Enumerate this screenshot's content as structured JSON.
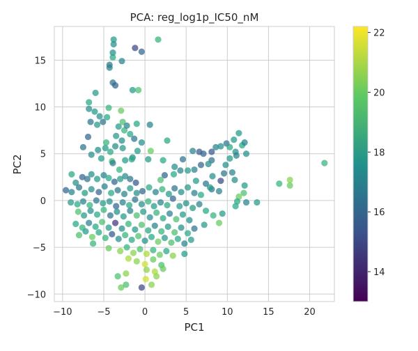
{
  "chart_data": {
    "type": "scatter",
    "title": "PCA: reg_log1p_IC50_nM",
    "xlabel": "PC1",
    "ylabel": "PC2",
    "xlim": [
      -11,
      23
    ],
    "ylim": [
      -10.8,
      18.6
    ],
    "grid": true,
    "x_ticks": [
      {
        "value": -10,
        "label": "−10"
      },
      {
        "value": -5,
        "label": "−5"
      },
      {
        "value": 0,
        "label": "0"
      },
      {
        "value": 5,
        "label": "5"
      },
      {
        "value": 10,
        "label": "10"
      },
      {
        "value": 15,
        "label": "15"
      },
      {
        "value": 20,
        "label": "20"
      }
    ],
    "y_ticks": [
      {
        "value": -10,
        "label": "−10"
      },
      {
        "value": -5,
        "label": "−5"
      },
      {
        "value": 0,
        "label": "0"
      },
      {
        "value": 5,
        "label": "5"
      },
      {
        "value": 10,
        "label": "10"
      },
      {
        "value": 15,
        "label": "15"
      }
    ],
    "colorbar": {
      "colormap": "viridis",
      "range": [
        13,
        22.2
      ],
      "ticks": [
        {
          "value": 14,
          "label": "14"
        },
        {
          "value": 16,
          "label": "16"
        },
        {
          "value": 18,
          "label": "18"
        },
        {
          "value": 20,
          "label": "20"
        },
        {
          "value": 22,
          "label": "22"
        }
      ]
    },
    "points": [
      [
        -3.8,
        17.2,
        18.0
      ],
      [
        -3.8,
        16.7,
        17.5
      ],
      [
        -1.2,
        16.3,
        15.0
      ],
      [
        -0.4,
        15.9,
        16.0
      ],
      [
        1.6,
        17.2,
        19.0
      ],
      [
        -3.9,
        15.8,
        17.5
      ],
      [
        -3.9,
        15.3,
        18.5
      ],
      [
        -2.8,
        14.9,
        17.0
      ],
      [
        -4.3,
        14.5,
        16.5
      ],
      [
        -4.3,
        14.2,
        17.0
      ],
      [
        -3.9,
        12.6,
        16.5
      ],
      [
        -3.6,
        12.3,
        16.0
      ],
      [
        -1.5,
        11.8,
        18.0
      ],
      [
        -0.8,
        11.8,
        19.5
      ],
      [
        -6.0,
        11.5,
        18.0
      ],
      [
        -6.8,
        10.5,
        18.5
      ],
      [
        -6.8,
        9.8,
        17.5
      ],
      [
        -6.1,
        9.5,
        18.0
      ],
      [
        -2.9,
        9.6,
        20.0
      ],
      [
        -4.4,
        9.9,
        19.0
      ],
      [
        -5.5,
        9.0,
        17.5
      ],
      [
        -4.6,
        8.9,
        18.5
      ],
      [
        -2.7,
        8.4,
        19.5
      ],
      [
        -6.6,
        8.4,
        16.5
      ],
      [
        -5.8,
        8.1,
        18.0
      ],
      [
        -3.2,
        7.9,
        18.0
      ],
      [
        -2.5,
        7.5,
        19.0
      ],
      [
        -2.2,
        8.0,
        17.0
      ],
      [
        -1.0,
        8.2,
        18.5
      ],
      [
        0.6,
        8.1,
        17.0
      ],
      [
        -1.8,
        7.1,
        18.5
      ],
      [
        -3.5,
        6.9,
        18.0
      ],
      [
        -1.3,
        6.6,
        16.5
      ],
      [
        -6.9,
        6.8,
        16.0
      ],
      [
        -2.8,
        6.4,
        17.5
      ],
      [
        -2.7,
        5.6,
        18.0
      ],
      [
        -0.4,
        6.2,
        17.5
      ],
      [
        2.7,
        6.4,
        18.5
      ],
      [
        -7.5,
        5.7,
        16.5
      ],
      [
        -5.7,
        5.4,
        17.5
      ],
      [
        -4.8,
        5.6,
        18.0
      ],
      [
        -4.2,
        5.2,
        18.5
      ],
      [
        -3.6,
        5.8,
        17.5
      ],
      [
        0.7,
        5.3,
        20.0
      ],
      [
        -6.5,
        4.9,
        17.5
      ],
      [
        -5.3,
        4.5,
        18.0
      ],
      [
        -4.0,
        4.2,
        19.5
      ],
      [
        -2.4,
        4.3,
        18.0
      ],
      [
        -1.5,
        4.6,
        17.5
      ],
      [
        0.4,
        4.4,
        18.0
      ],
      [
        2.2,
        4.3,
        18.5
      ],
      [
        4.6,
        4.4,
        16.5
      ],
      [
        5.8,
        5.3,
        17.0
      ],
      [
        6.6,
        5.2,
        15.5
      ],
      [
        7.1,
        5.0,
        16.0
      ],
      [
        8.1,
        5.2,
        15.5
      ],
      [
        8.6,
        5.7,
        17.0
      ],
      [
        9.2,
        5.8,
        17.5
      ],
      [
        9.9,
        6.1,
        16.5
      ],
      [
        10.8,
        6.5,
        18.0
      ],
      [
        11.4,
        7.2,
        18.0
      ],
      [
        10.3,
        5.7,
        18.5
      ],
      [
        11.0,
        5.2,
        17.5
      ],
      [
        11.8,
        5.9,
        18.5
      ],
      [
        12.1,
        6.2,
        17.0
      ],
      [
        12.3,
        5.0,
        17.5
      ],
      [
        11.1,
        4.8,
        17.0
      ],
      [
        10.3,
        4.5,
        18.0
      ],
      [
        9.8,
        3.8,
        17.5
      ],
      [
        10.6,
        3.0,
        17.0
      ],
      [
        8.1,
        4.3,
        16.5
      ],
      [
        7.7,
        3.9,
        17.5
      ],
      [
        6.8,
        3.8,
        16.0
      ],
      [
        6.0,
        3.3,
        17.0
      ],
      [
        5.2,
        3.2,
        18.0
      ],
      [
        4.3,
        3.2,
        17.0
      ],
      [
        3.5,
        2.8,
        18.5
      ],
      [
        2.4,
        2.7,
        16.0
      ],
      [
        1.9,
        2.2,
        19.5
      ],
      [
        8.2,
        2.6,
        17.5
      ],
      [
        9.2,
        2.1,
        15.0
      ],
      [
        10.9,
        2.2,
        17.5
      ],
      [
        7.4,
        1.8,
        16.5
      ],
      [
        9.0,
        1.0,
        17.0
      ],
      [
        8.1,
        1.2,
        16.5
      ],
      [
        12.1,
        1.6,
        18.0
      ],
      [
        12.0,
        0.8,
        19.5
      ],
      [
        11.4,
        0.4,
        20.0
      ],
      [
        11.2,
        -0.1,
        18.5
      ],
      [
        12.3,
        -0.2,
        17.0
      ],
      [
        13.6,
        -0.2,
        18.0
      ],
      [
        11.0,
        -0.6,
        18.5
      ],
      [
        16.3,
        1.8,
        19.0
      ],
      [
        17.6,
        2.2,
        20.5
      ],
      [
        17.6,
        1.6,
        20.0
      ],
      [
        21.8,
        4.0,
        19.0
      ],
      [
        -8.9,
        2.8,
        18.5
      ],
      [
        -8.4,
        1.9,
        17.5
      ],
      [
        -7.6,
        2.5,
        16.0
      ],
      [
        -7.0,
        2.3,
        16.5
      ],
      [
        -6.5,
        2.8,
        17.5
      ],
      [
        -5.8,
        2.3,
        18.0
      ],
      [
        -5.0,
        2.7,
        17.0
      ],
      [
        -4.4,
        2.4,
        18.5
      ],
      [
        -3.7,
        2.0,
        16.0
      ],
      [
        -3.0,
        2.3,
        18.0
      ],
      [
        -2.4,
        2.6,
        17.5
      ],
      [
        -1.8,
        2.3,
        16.5
      ],
      [
        -1.1,
        1.9,
        15.5
      ],
      [
        -9.6,
        1.1,
        16.0
      ],
      [
        -8.9,
        0.9,
        17.0
      ],
      [
        -8.0,
        1.4,
        16.5
      ],
      [
        -7.3,
        0.8,
        18.0
      ],
      [
        -6.5,
        1.2,
        17.5
      ],
      [
        -5.6,
        0.9,
        16.0
      ],
      [
        -4.9,
        1.5,
        17.0
      ],
      [
        -4.1,
        0.8,
        18.5
      ],
      [
        -3.3,
        1.1,
        16.5
      ],
      [
        -2.5,
        0.7,
        17.0
      ],
      [
        -1.8,
        1.3,
        18.0
      ],
      [
        -1.0,
        0.8,
        17.5
      ],
      [
        -0.3,
        1.0,
        16.0
      ],
      [
        0.5,
        1.4,
        18.5
      ],
      [
        1.3,
        0.9,
        17.0
      ],
      [
        2.1,
        1.2,
        19.0
      ],
      [
        2.9,
        0.7,
        18.0
      ],
      [
        3.6,
        1.3,
        16.5
      ],
      [
        4.4,
        0.9,
        17.5
      ],
      [
        5.2,
        1.4,
        18.0
      ],
      [
        6.0,
        0.8,
        17.0
      ],
      [
        6.8,
        0.6,
        18.5
      ],
      [
        -9.0,
        -0.2,
        18.0
      ],
      [
        -8.2,
        -0.4,
        18.5
      ],
      [
        -7.5,
        -0.1,
        17.0
      ],
      [
        -6.7,
        -0.5,
        19.0
      ],
      [
        -5.9,
        0.0,
        16.5
      ],
      [
        -5.1,
        -0.3,
        18.0
      ],
      [
        -4.3,
        -0.1,
        17.5
      ],
      [
        -3.5,
        -0.6,
        16.0
      ],
      [
        -2.7,
        -0.2,
        17.0
      ],
      [
        -1.9,
        -0.5,
        18.5
      ],
      [
        -1.2,
        0.1,
        16.5
      ],
      [
        -0.4,
        -0.4,
        17.5
      ],
      [
        0.4,
        -0.1,
        19.0
      ],
      [
        1.1,
        -0.6,
        18.0
      ],
      [
        1.9,
        -0.2,
        17.0
      ],
      [
        2.7,
        -0.5,
        18.5
      ],
      [
        3.4,
        0.2,
        16.0
      ],
      [
        4.2,
        -0.6,
        18.0
      ],
      [
        5.0,
        -0.3,
        17.5
      ],
      [
        5.8,
        -0.8,
        18.0
      ],
      [
        6.6,
        -0.4,
        17.0
      ],
      [
        7.4,
        -1.1,
        18.5
      ],
      [
        8.3,
        -1.6,
        19.0
      ],
      [
        9.4,
        -1.4,
        18.0
      ],
      [
        -8.1,
        -1.2,
        19.5
      ],
      [
        -7.4,
        -1.6,
        18.0
      ],
      [
        -6.6,
        -1.1,
        17.5
      ],
      [
        -5.8,
        -1.5,
        18.5
      ],
      [
        -5.0,
        -1.0,
        19.0
      ],
      [
        -4.2,
        -1.6,
        16.5
      ],
      [
        -3.4,
        -1.2,
        17.5
      ],
      [
        -2.6,
        -1.7,
        18.0
      ],
      [
        -1.8,
        -1.1,
        17.0
      ],
      [
        -1.0,
        -1.6,
        19.5
      ],
      [
        -0.2,
        -1.2,
        18.0
      ],
      [
        0.6,
        -1.8,
        17.5
      ],
      [
        1.4,
        -1.3,
        19.0
      ],
      [
        2.2,
        -1.9,
        18.5
      ],
      [
        3.0,
        -1.4,
        17.0
      ],
      [
        3.8,
        -2.0,
        19.5
      ],
      [
        4.6,
        -1.5,
        18.0
      ],
      [
        5.4,
        -2.1,
        17.5
      ],
      [
        -8.4,
        -2.5,
        18.5
      ],
      [
        -7.6,
        -2.9,
        19.0
      ],
      [
        -6.8,
        -2.4,
        17.0
      ],
      [
        -6.0,
        -2.8,
        18.5
      ],
      [
        -5.2,
        -2.3,
        19.5
      ],
      [
        -4.4,
        -2.9,
        18.0
      ],
      [
        -3.6,
        -2.4,
        14.5
      ],
      [
        -2.8,
        -3.0,
        17.5
      ],
      [
        -2.0,
        -2.5,
        19.0
      ],
      [
        -1.2,
        -3.1,
        18.0
      ],
      [
        -0.4,
        -2.6,
        19.5
      ],
      [
        0.4,
        -3.2,
        18.5
      ],
      [
        1.2,
        -2.7,
        17.0
      ],
      [
        2.0,
        -3.3,
        19.0
      ],
      [
        2.8,
        -2.8,
        18.0
      ],
      [
        3.6,
        -3.4,
        19.5
      ],
      [
        4.4,
        -2.9,
        17.5
      ],
      [
        5.2,
        -3.5,
        18.5
      ],
      [
        6.0,
        -3.0,
        16.5
      ],
      [
        7.2,
        -2.6,
        18.0
      ],
      [
        9.0,
        -2.4,
        20.0
      ],
      [
        -8.0,
        -3.7,
        19.5
      ],
      [
        -7.2,
        -3.3,
        18.0
      ],
      [
        -6.4,
        -3.9,
        20.0
      ],
      [
        -5.6,
        -3.4,
        18.5
      ],
      [
        -4.8,
        -4.0,
        19.0
      ],
      [
        -4.0,
        -3.6,
        15.5
      ],
      [
        -3.2,
        -4.1,
        17.5
      ],
      [
        -2.4,
        -3.7,
        19.0
      ],
      [
        -1.6,
        -4.2,
        18.5
      ],
      [
        -0.8,
        -3.8,
        19.5
      ],
      [
        0.0,
        -4.3,
        17.5
      ],
      [
        0.8,
        -3.9,
        18.5
      ],
      [
        1.6,
        -4.4,
        20.0
      ],
      [
        2.4,
        -4.0,
        18.0
      ],
      [
        3.2,
        -4.5,
        19.5
      ],
      [
        4.0,
        -4.1,
        18.5
      ],
      [
        4.8,
        -4.6,
        17.0
      ],
      [
        5.6,
        -4.2,
        18.0
      ],
      [
        -6.3,
        -4.6,
        19.0
      ],
      [
        -4.4,
        -5.1,
        20.0
      ],
      [
        -3.0,
        -5.4,
        20.5
      ],
      [
        -2.2,
        -5.0,
        19.0
      ],
      [
        -1.4,
        -5.6,
        20.5
      ],
      [
        -0.6,
        -5.2,
        19.5
      ],
      [
        0.2,
        -5.7,
        21.0
      ],
      [
        1.0,
        -5.3,
        19.0
      ],
      [
        1.8,
        -5.8,
        20.0
      ],
      [
        2.6,
        -5.4,
        18.5
      ],
      [
        3.4,
        -5.9,
        20.5
      ],
      [
        4.8,
        -5.7,
        18.0
      ],
      [
        -2.0,
        -6.2,
        21.0
      ],
      [
        -1.0,
        -6.5,
        20.5
      ],
      [
        0.0,
        -6.8,
        21.5
      ],
      [
        1.0,
        -6.3,
        20.0
      ],
      [
        2.0,
        -6.9,
        19.5
      ],
      [
        0.2,
        -7.4,
        20.5
      ],
      [
        1.2,
        -7.6,
        21.0
      ],
      [
        2.2,
        -7.3,
        20.0
      ],
      [
        -2.3,
        -7.8,
        20.5
      ],
      [
        -3.3,
        -8.1,
        19.5
      ],
      [
        0.1,
        -8.4,
        21.5
      ],
      [
        1.4,
        -8.1,
        20.5
      ],
      [
        -2.9,
        -9.3,
        20.0
      ],
      [
        -0.4,
        -9.3,
        15.0
      ],
      [
        -2.3,
        -9.0,
        19.5
      ],
      [
        0.8,
        -9.0,
        20.5
      ],
      [
        -3.9,
        4.0,
        17.0
      ],
      [
        -1.6,
        4.4,
        18.5
      ],
      [
        3.6,
        3.6,
        17.5
      ],
      [
        7.9,
        1.4,
        18.0
      ],
      [
        9.6,
        2.9,
        16.5
      ],
      [
        -5.1,
        8.4,
        16.5
      ],
      [
        -4.7,
        6.2,
        19.0
      ],
      [
        -0.9,
        5.3,
        18.0
      ],
      [
        -3.1,
        3.3,
        19.0
      ],
      [
        6.2,
        2.1,
        18.0
      ]
    ]
  }
}
